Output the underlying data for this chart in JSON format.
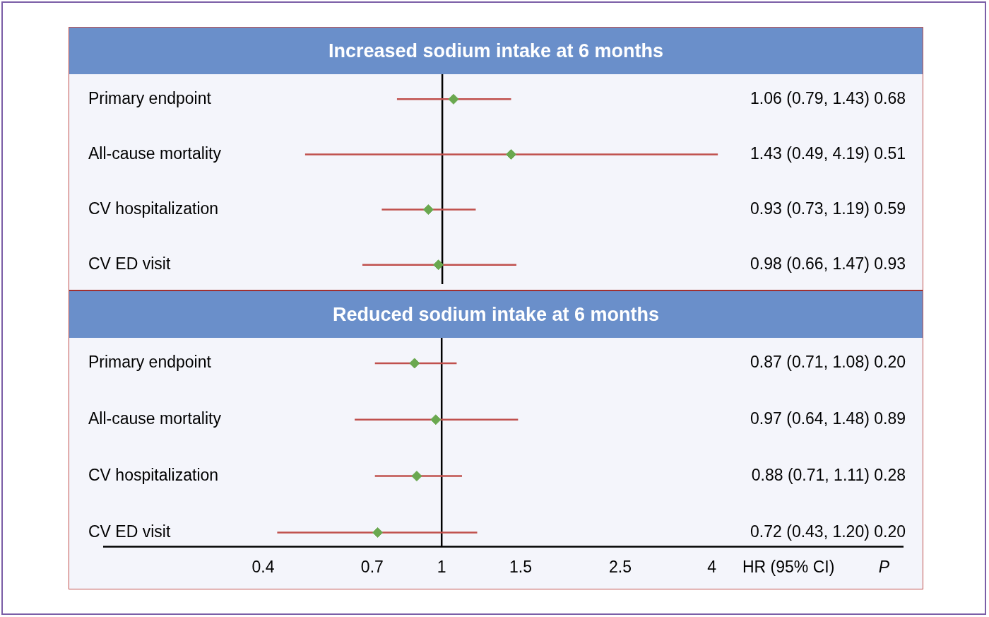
{
  "chart_data": [
    {
      "type": "scatter",
      "orientation": "horizontal",
      "title": "Increased sodium intake at 6 months",
      "categories": [
        "Primary endpoint",
        "All-cause mortality",
        "CV hospitalization",
        "CV ED visit"
      ],
      "series": [
        {
          "color": "#6aa84f",
          "values": [
            1.06,
            1.43,
            0.93,
            0.98
          ],
          "errors": [
            [
              0.79,
              1.43
            ],
            [
              0.49,
              4.19
            ],
            [
              0.73,
              1.19
            ],
            [
              0.66,
              1.47
            ]
          ]
        }
      ],
      "annotations": [
        "1.06 (0.79, 1.43) 0.68",
        "1.43 (0.49, 4.19) 0.51",
        "0.93 (0.73, 1.19) 0.59",
        "0.98 (0.66, 1.47) 0.93"
      ],
      "log": "x",
      "xlim": [
        0.148,
        11.8
      ],
      "xticks": [
        0.4,
        0.7,
        1,
        1.5,
        2.5,
        4
      ],
      "tick_labels": false,
      "marker": "diamond",
      "ref_lines": [
        {
          "axis": "x",
          "value": 1,
          "color": "#000000"
        }
      ]
    },
    {
      "type": "scatter",
      "orientation": "horizontal",
      "title": "Reduced sodium intake at 6 months",
      "categories": [
        "Primary endpoint",
        "All-cause mortality",
        "CV hospitalization",
        "CV ED visit"
      ],
      "series": [
        {
          "color": "#6aa84f",
          "values": [
            0.87,
            0.97,
            0.88,
            0.72
          ],
          "errors": [
            [
              0.71,
              1.08
            ],
            [
              0.64,
              1.48
            ],
            [
              0.71,
              1.11
            ],
            [
              0.43,
              1.2
            ]
          ]
        }
      ],
      "log": "x",
      "xlim": [
        0.176,
        10.7
      ],
      "xticks": [
        0.4,
        0.7,
        1,
        1.5,
        2.5,
        4
      ],
      "marker": "diamond",
      "ref_lines": [
        {
          "axis": "x",
          "value": 1,
          "color": "#000000"
        }
      ],
      "xlabel": "HR (95% CI)",
      "annotations": [
        "0.87 (0.71, 1.08) 0.20",
        "0.97 (0.64, 1.48) 0.89",
        "0.88 (0.71, 1.11) 0.28",
        "0.72 (0.43, 1.20) 0.20",
        "P"
      ]
    }
  ]
}
